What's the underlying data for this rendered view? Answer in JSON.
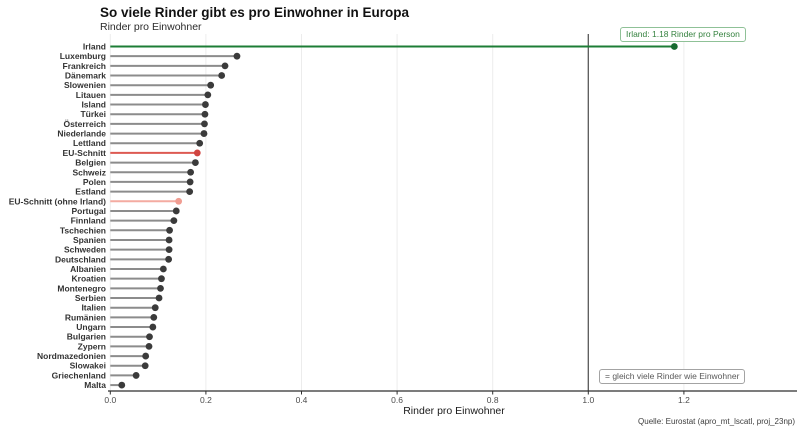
{
  "source": "Quelle: Eurostat (apro_mt_lscatl, proj_23np)",
  "annotations": {
    "ireland_label": "Irland: 1.18 Rinder pro Person",
    "parity_label": "= gleich viele Rinder wie Einwohner"
  },
  "colors": {
    "default_stem": "#8c8c8c",
    "default_dot": "#3b3b3b",
    "green_stem": "#1d7d36",
    "green_dot": "#176b2f",
    "red_stem": "#dd5a52",
    "red_dot": "#d04540",
    "salmon_stem": "#f4aba1",
    "salmon_dot": "#f09d92",
    "gridline": "#ececec",
    "refline": "#595959",
    "axis": "#2f2f2f",
    "tick_text": "#4d4d4d",
    "label_text": "#333333"
  },
  "chart_data": {
    "type": "bar",
    "variant": "lollipop",
    "orientation": "horizontal",
    "title": "So viele Rinder gibt es pro Einwohner in Europa",
    "subtitle": "Rinder pro Einwohner",
    "xlabel": "Rinder pro Einwohner",
    "xlim": [
      0,
      1.38
    ],
    "xticks": [
      0,
      0.2,
      0.4,
      0.6,
      0.8,
      1.0,
      1.2
    ],
    "grid": "major-vertical",
    "reference_line_x": 1.0,
    "rows": [
      {
        "label": "Irland",
        "value": 1.18,
        "color": "green"
      },
      {
        "label": "Luxemburg",
        "value": 0.265,
        "color": "default"
      },
      {
        "label": "Frankreich",
        "value": 0.24,
        "color": "default"
      },
      {
        "label": "Dänemark",
        "value": 0.233,
        "color": "default"
      },
      {
        "label": "Slowenien",
        "value": 0.21,
        "color": "default"
      },
      {
        "label": "Litauen",
        "value": 0.204,
        "color": "default"
      },
      {
        "label": "Island",
        "value": 0.199,
        "color": "default"
      },
      {
        "label": "Türkei",
        "value": 0.198,
        "color": "default"
      },
      {
        "label": "Österreich",
        "value": 0.197,
        "color": "default"
      },
      {
        "label": "Niederlande",
        "value": 0.196,
        "color": "default"
      },
      {
        "label": "Lettland",
        "value": 0.187,
        "color": "default"
      },
      {
        "label": "EU-Schnitt",
        "value": 0.182,
        "color": "red"
      },
      {
        "label": "Belgien",
        "value": 0.178,
        "color": "default"
      },
      {
        "label": "Schweiz",
        "value": 0.168,
        "color": "default"
      },
      {
        "label": "Polen",
        "value": 0.167,
        "color": "default"
      },
      {
        "label": "Estland",
        "value": 0.166,
        "color": "default"
      },
      {
        "label": "EU-Schnitt (ohne Irland)",
        "value": 0.143,
        "color": "salmon"
      },
      {
        "label": "Portugal",
        "value": 0.138,
        "color": "default"
      },
      {
        "label": "Finnland",
        "value": 0.133,
        "color": "default"
      },
      {
        "label": "Tschechien",
        "value": 0.124,
        "color": "default"
      },
      {
        "label": "Spanien",
        "value": 0.123,
        "color": "default"
      },
      {
        "label": "Schweden",
        "value": 0.123,
        "color": "default"
      },
      {
        "label": "Deutschland",
        "value": 0.122,
        "color": "default"
      },
      {
        "label": "Albanien",
        "value": 0.111,
        "color": "default"
      },
      {
        "label": "Kroatien",
        "value": 0.107,
        "color": "default"
      },
      {
        "label": "Montenegro",
        "value": 0.105,
        "color": "default"
      },
      {
        "label": "Serbien",
        "value": 0.102,
        "color": "default"
      },
      {
        "label": "Italien",
        "value": 0.094,
        "color": "default"
      },
      {
        "label": "Rumänien",
        "value": 0.091,
        "color": "default"
      },
      {
        "label": "Ungarn",
        "value": 0.089,
        "color": "default"
      },
      {
        "label": "Bulgarien",
        "value": 0.082,
        "color": "default"
      },
      {
        "label": "Zypern",
        "value": 0.081,
        "color": "default"
      },
      {
        "label": "Nordmazedonien",
        "value": 0.074,
        "color": "default"
      },
      {
        "label": "Slowakei",
        "value": 0.073,
        "color": "default"
      },
      {
        "label": "Griechenland",
        "value": 0.054,
        "color": "default"
      },
      {
        "label": "Malta",
        "value": 0.024,
        "color": "default"
      }
    ]
  }
}
